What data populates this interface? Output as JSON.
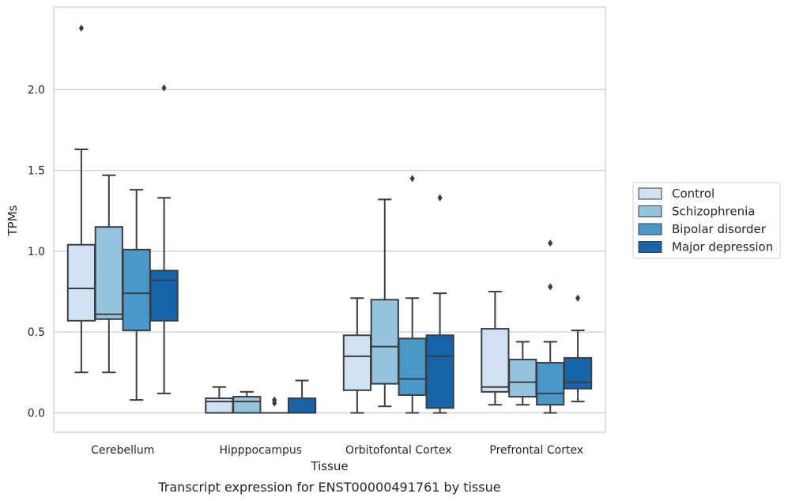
{
  "chart_data": {
    "type": "box",
    "title": "",
    "caption": "Transcript expression for ENST00000491761 by tissue",
    "xlabel": "Tissue",
    "ylabel": "TPMs",
    "ylim": [
      -0.12,
      2.51
    ],
    "yticks": [
      0.0,
      0.5,
      1.0,
      1.5,
      2.0
    ],
    "ytick_labels": [
      "0.0",
      "0.5",
      "1.0",
      "1.5",
      "2.0"
    ],
    "grid": "horizontal",
    "legend_position": "right",
    "categories": [
      "Cerebellum",
      "Hipppocampus",
      "Orbitofontal Cortex",
      "Prefrontal Cortex"
    ],
    "series": [
      {
        "name": "Control",
        "color": "#d0e1f2",
        "boxes": [
          {
            "whislo": 0.25,
            "q1": 0.57,
            "med": 0.77,
            "q3": 1.04,
            "whishi": 1.63,
            "fliers": [
              2.38
            ]
          },
          {
            "whislo": 0.0,
            "q1": 0.0,
            "med": 0.07,
            "q3": 0.09,
            "whishi": 0.16,
            "fliers": []
          },
          {
            "whislo": 0.0,
            "q1": 0.14,
            "med": 0.35,
            "q3": 0.48,
            "whishi": 0.71,
            "fliers": []
          },
          {
            "whislo": 0.05,
            "q1": 0.13,
            "med": 0.16,
            "q3": 0.52,
            "whishi": 0.75,
            "fliers": []
          }
        ]
      },
      {
        "name": "Schizophrenia",
        "color": "#94c4df",
        "boxes": [
          {
            "whislo": 0.25,
            "q1": 0.58,
            "med": 0.61,
            "q3": 1.15,
            "whishi": 1.47,
            "fliers": []
          },
          {
            "whislo": 0.0,
            "q1": 0.0,
            "med": 0.07,
            "q3": 0.1,
            "whishi": 0.13,
            "fliers": []
          },
          {
            "whislo": 0.04,
            "q1": 0.18,
            "med": 0.41,
            "q3": 0.7,
            "whishi": 1.32,
            "fliers": []
          },
          {
            "whislo": 0.05,
            "q1": 0.1,
            "med": 0.19,
            "q3": 0.33,
            "whishi": 0.44,
            "fliers": []
          }
        ]
      },
      {
        "name": "Bipolar disorder",
        "color": "#4a98c9",
        "boxes": [
          {
            "whislo": 0.08,
            "q1": 0.51,
            "med": 0.74,
            "q3": 1.01,
            "whishi": 1.38,
            "fliers": []
          },
          {
            "whislo": 0.0,
            "q1": 0.0,
            "med": 0.0,
            "q3": 0.0,
            "whishi": 0.0,
            "fliers": [
              0.06,
              0.08
            ]
          },
          {
            "whislo": 0.0,
            "q1": 0.11,
            "med": 0.21,
            "q3": 0.46,
            "whishi": 0.71,
            "fliers": [
              1.45
            ]
          },
          {
            "whislo": 0.0,
            "q1": 0.05,
            "med": 0.12,
            "q3": 0.31,
            "whishi": 0.44,
            "fliers": [
              0.78,
              1.05
            ]
          }
        ]
      },
      {
        "name": "Major depression",
        "color": "#1764ab",
        "boxes": [
          {
            "whislo": 0.12,
            "q1": 0.57,
            "med": 0.82,
            "q3": 0.88,
            "whishi": 1.33,
            "fliers": [
              2.01
            ]
          },
          {
            "whislo": 0.0,
            "q1": 0.0,
            "med": 0.0,
            "q3": 0.09,
            "whishi": 0.2,
            "fliers": []
          },
          {
            "whislo": 0.0,
            "q1": 0.03,
            "med": 0.35,
            "q3": 0.48,
            "whishi": 0.74,
            "fliers": [
              1.33
            ]
          },
          {
            "whislo": 0.07,
            "q1": 0.15,
            "med": 0.19,
            "q3": 0.34,
            "whishi": 0.51,
            "fliers": [
              0.71
            ]
          }
        ]
      }
    ]
  }
}
